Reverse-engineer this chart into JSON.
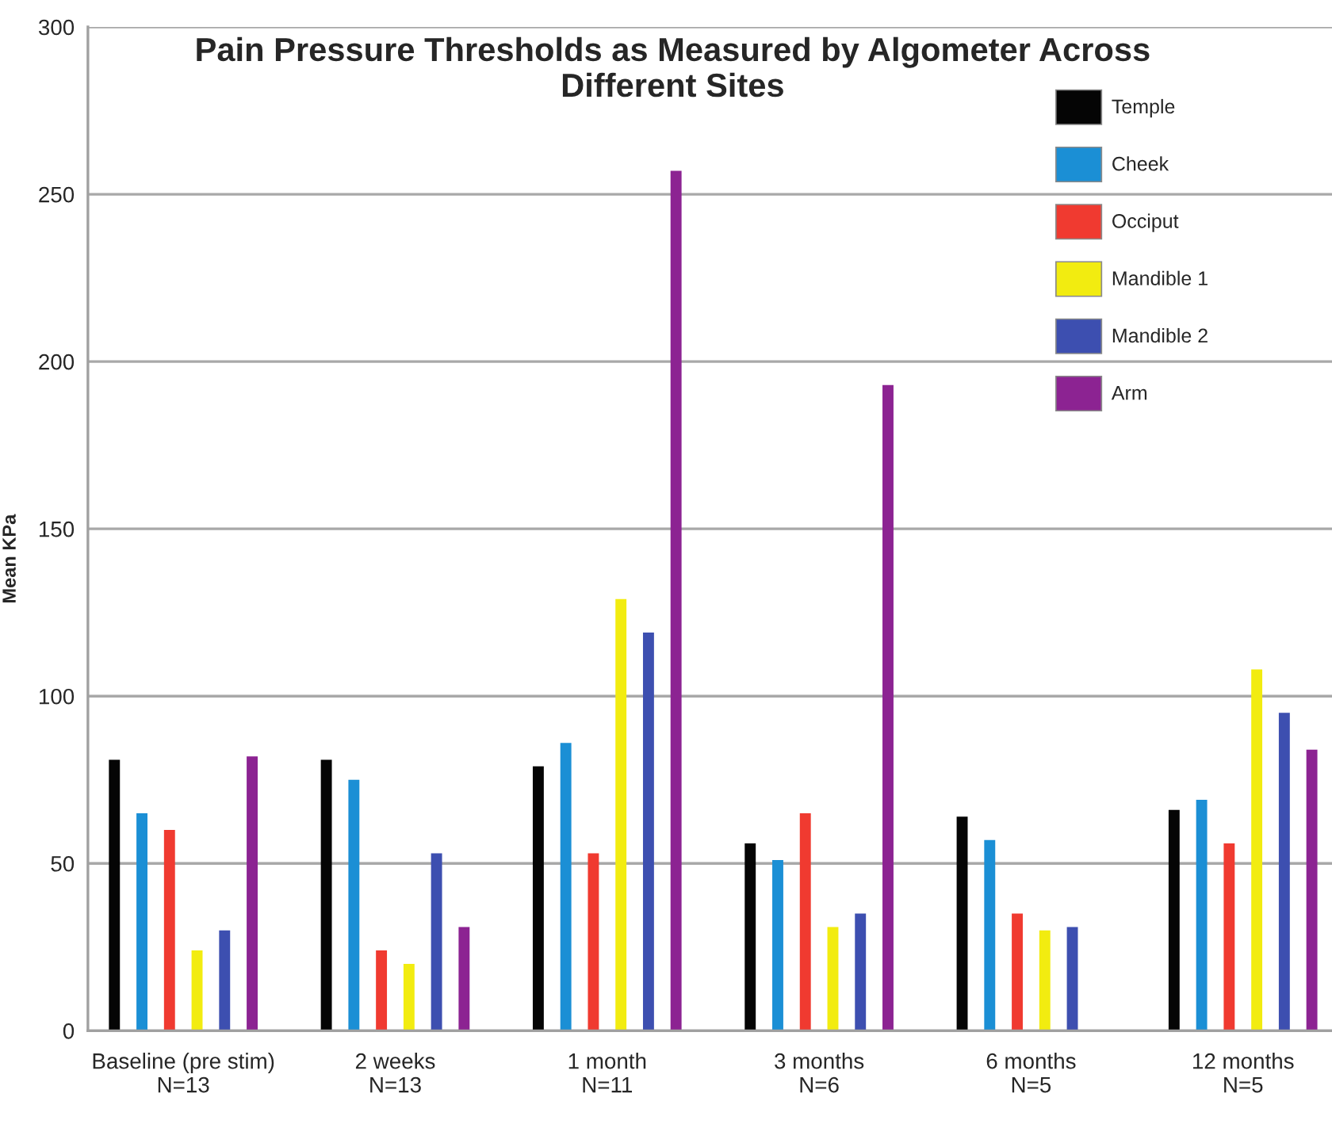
{
  "chart_data": {
    "type": "bar",
    "title": "Pain Pressure Thresholds as Measured by Algometer Across\nDifferent Sites",
    "ylabel": "Mean KPa",
    "categories": [
      "Baseline (pre stim)\nN=13",
      "2 weeks\nN=13",
      "1 month\nN=11",
      "3 months\nN=6",
      "6 months\nN=5",
      "12 months\nN=5"
    ],
    "series": [
      {
        "name": "Temple",
        "color": "#050505",
        "values": [
          81,
          81,
          79,
          56,
          64,
          66
        ]
      },
      {
        "name": "Cheek",
        "color": "#1b8fd5",
        "values": [
          65,
          75,
          86,
          51,
          57,
          69
        ]
      },
      {
        "name": "Occiput",
        "color": "#f03a30",
        "values": [
          60,
          24,
          53,
          65,
          35,
          56
        ]
      },
      {
        "name": "Mandible 1",
        "color": "#f2ec10",
        "values": [
          24,
          20,
          129,
          31,
          30,
          108
        ]
      },
      {
        "name": "Mandible 2",
        "color": "#3d4fb0",
        "values": [
          30,
          53,
          119,
          35,
          31,
          95
        ]
      },
      {
        "name": "Arm",
        "color": "#8c2392",
        "values": [
          82,
          31,
          257,
          193,
          null,
          84
        ]
      }
    ],
    "ylim": [
      0,
      300
    ],
    "yticks": [
      0,
      50,
      100,
      150,
      200,
      250,
      300
    ],
    "grid": "y",
    "legend": "top right"
  }
}
